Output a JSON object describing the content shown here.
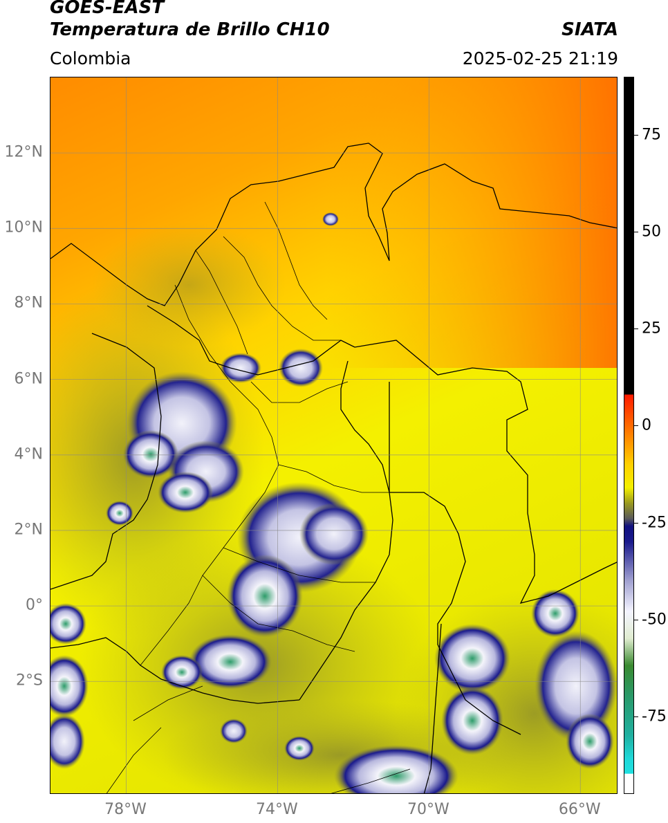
{
  "header": {
    "satellite": "GOES-EAST",
    "product": "Temperatura de Brillo CH10",
    "region": "Colombia",
    "organization": "SIATA",
    "timestamp": "2025-02-25 21:19"
  },
  "map": {
    "lon_range": [
      -80.0,
      -65.0
    ],
    "lat_range": [
      -5.0,
      14.0
    ],
    "gridlines": true,
    "lat_ticks": [
      {
        "value": 12,
        "label": "12°N"
      },
      {
        "value": 10,
        "label": "10°N"
      },
      {
        "value": 8,
        "label": "8°N"
      },
      {
        "value": 6,
        "label": "6°N"
      },
      {
        "value": 4,
        "label": "4°N"
      },
      {
        "value": 2,
        "label": "2°N"
      },
      {
        "value": 0,
        "label": "0°"
      },
      {
        "value": -2,
        "label": "2°S"
      }
    ],
    "lon_ticks": [
      {
        "value": -78,
        "label": "78°W"
      },
      {
        "value": -74,
        "label": "74°W"
      },
      {
        "value": -70,
        "label": "70°W"
      },
      {
        "value": -66,
        "label": "66°W"
      }
    ]
  },
  "colorbar": {
    "min": -95,
    "max": 90,
    "ticks": [
      {
        "value": 75,
        "label": "75"
      },
      {
        "value": 50,
        "label": "50"
      },
      {
        "value": 25,
        "label": "25"
      },
      {
        "value": 0,
        "label": "0"
      },
      {
        "value": -25,
        "label": "-25"
      },
      {
        "value": -50,
        "label": "-50"
      },
      {
        "value": -75,
        "label": "-75"
      }
    ]
  }
}
